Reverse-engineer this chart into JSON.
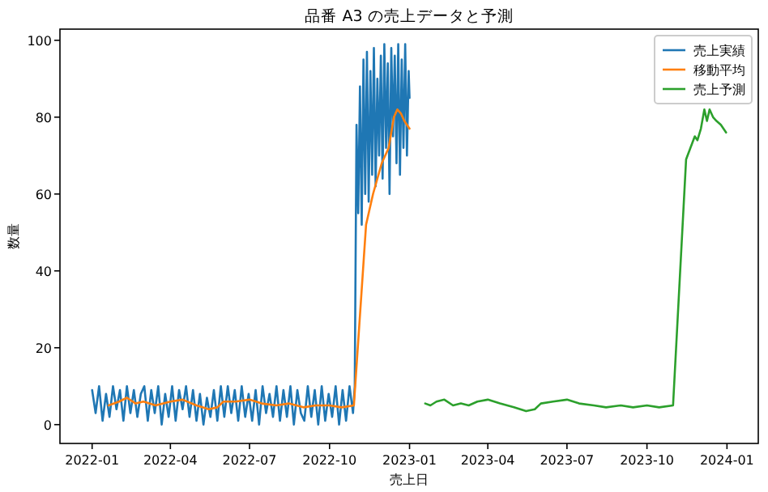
{
  "chart_data": {
    "type": "line",
    "title": "品番 A3 の売上データと予測",
    "xlabel": "売上日",
    "ylabel": "数量",
    "xlim": [
      "2021-11-25",
      "2024-02-06"
    ],
    "xticks": [
      {
        "value": "2022-01-01",
        "label": "2022-01"
      },
      {
        "value": "2022-04-01",
        "label": "2022-04"
      },
      {
        "value": "2022-07-01",
        "label": "2022-07"
      },
      {
        "value": "2022-10-01",
        "label": "2022-10"
      },
      {
        "value": "2023-01-01",
        "label": "2023-01"
      },
      {
        "value": "2023-04-01",
        "label": "2023-04"
      },
      {
        "value": "2023-07-01",
        "label": "2023-07"
      },
      {
        "value": "2023-10-01",
        "label": "2023-10"
      },
      {
        "value": "2024-01-01",
        "label": "2024-01"
      }
    ],
    "ylim": [
      -4.9,
      102.9
    ],
    "yticks": [
      0,
      20,
      40,
      60,
      80,
      100
    ],
    "legend": "top right",
    "series": [
      {
        "name": "売上実績",
        "color": "#1f77b4",
        "x": [
          "2022-01-01",
          "2022-01-05",
          "2022-01-09",
          "2022-01-13",
          "2022-01-17",
          "2022-01-21",
          "2022-01-25",
          "2022-01-29",
          "2022-02-02",
          "2022-02-06",
          "2022-02-10",
          "2022-02-14",
          "2022-02-18",
          "2022-02-22",
          "2022-02-26",
          "2022-03-02",
          "2022-03-06",
          "2022-03-10",
          "2022-03-14",
          "2022-03-18",
          "2022-03-22",
          "2022-03-26",
          "2022-03-30",
          "2022-04-03",
          "2022-04-07",
          "2022-04-11",
          "2022-04-15",
          "2022-04-19",
          "2022-04-23",
          "2022-04-27",
          "2022-05-01",
          "2022-05-05",
          "2022-05-09",
          "2022-05-13",
          "2022-05-17",
          "2022-05-21",
          "2022-05-25",
          "2022-05-29",
          "2022-06-02",
          "2022-06-06",
          "2022-06-10",
          "2022-06-14",
          "2022-06-18",
          "2022-06-22",
          "2022-06-26",
          "2022-06-30",
          "2022-07-04",
          "2022-07-08",
          "2022-07-12",
          "2022-07-16",
          "2022-07-20",
          "2022-07-24",
          "2022-07-28",
          "2022-08-01",
          "2022-08-05",
          "2022-08-09",
          "2022-08-13",
          "2022-08-17",
          "2022-08-21",
          "2022-08-25",
          "2022-08-29",
          "2022-09-02",
          "2022-09-06",
          "2022-09-10",
          "2022-09-14",
          "2022-09-18",
          "2022-09-22",
          "2022-09-26",
          "2022-09-30",
          "2022-10-04",
          "2022-10-08",
          "2022-10-12",
          "2022-10-16",
          "2022-10-20",
          "2022-10-24",
          "2022-10-28",
          "2022-10-30",
          "2022-11-01",
          "2022-11-03",
          "2022-11-05",
          "2022-11-07",
          "2022-11-09",
          "2022-11-11",
          "2022-11-13",
          "2022-11-15",
          "2022-11-17",
          "2022-11-19",
          "2022-11-21",
          "2022-11-23",
          "2022-11-25",
          "2022-11-27",
          "2022-11-29",
          "2022-12-01",
          "2022-12-03",
          "2022-12-05",
          "2022-12-07",
          "2022-12-09",
          "2022-12-11",
          "2022-12-13",
          "2022-12-15",
          "2022-12-17",
          "2022-12-19",
          "2022-12-21",
          "2022-12-23",
          "2022-12-25",
          "2022-12-27",
          "2022-12-29",
          "2022-12-31",
          "2023-01-01"
        ],
        "values": [
          9,
          3,
          10,
          1,
          8,
          2,
          10,
          4,
          9,
          1,
          10,
          3,
          9,
          2,
          8,
          10,
          1,
          9,
          3,
          10,
          0,
          8,
          2,
          10,
          1,
          9,
          4,
          10,
          2,
          9,
          1,
          8,
          0,
          7,
          2,
          9,
          1,
          10,
          2,
          10,
          3,
          9,
          1,
          10,
          2,
          8,
          1,
          9,
          0,
          10,
          3,
          8,
          2,
          10,
          1,
          9,
          2,
          10,
          0,
          9,
          3,
          1,
          10,
          2,
          9,
          0,
          10,
          1,
          8,
          2,
          10,
          0,
          9,
          1,
          10,
          3,
          10,
          78,
          55,
          88,
          52,
          95,
          60,
          97,
          58,
          92,
          65,
          98,
          62,
          90,
          70,
          96,
          64,
          99,
          72,
          94,
          60,
          98,
          75,
          96,
          68,
          99,
          65,
          95,
          72,
          99,
          70,
          92,
          85
        ]
      },
      {
        "name": "移動平均",
        "color": "#ff7f0e",
        "x": [
          "2022-01-20",
          "2022-02-01",
          "2022-02-10",
          "2022-02-20",
          "2022-03-01",
          "2022-03-15",
          "2022-04-01",
          "2022-04-15",
          "2022-05-01",
          "2022-05-15",
          "2022-05-25",
          "2022-06-01",
          "2022-06-15",
          "2022-07-01",
          "2022-07-15",
          "2022-08-01",
          "2022-08-15",
          "2022-09-01",
          "2022-09-15",
          "2022-10-01",
          "2022-10-15",
          "2022-10-29",
          "2022-11-12",
          "2022-11-20",
          "2022-11-30",
          "2022-12-08",
          "2022-12-14",
          "2022-12-18",
          "2022-12-22",
          "2022-12-26",
          "2023-01-01"
        ],
        "values": [
          5,
          6,
          7,
          5.5,
          6,
          5,
          6,
          6.5,
          5,
          4,
          4.5,
          6,
          6,
          6.5,
          5.5,
          5,
          5.5,
          4.5,
          5,
          5,
          4.5,
          5,
          52,
          60,
          68,
          72,
          80,
          82,
          81,
          79,
          77
        ]
      },
      {
        "name": "売上予測",
        "color": "#2ca02c",
        "x": [
          "2023-01-19",
          "2023-01-25",
          "2023-02-01",
          "2023-02-10",
          "2023-02-20",
          "2023-03-01",
          "2023-03-10",
          "2023-03-20",
          "2023-04-01",
          "2023-04-15",
          "2023-05-01",
          "2023-05-15",
          "2023-05-25",
          "2023-06-01",
          "2023-06-15",
          "2023-07-01",
          "2023-07-15",
          "2023-08-01",
          "2023-08-15",
          "2023-09-01",
          "2023-09-15",
          "2023-10-01",
          "2023-10-15",
          "2023-10-31",
          "2023-11-15",
          "2023-11-20",
          "2023-11-25",
          "2023-11-28",
          "2023-12-02",
          "2023-12-06",
          "2023-12-09",
          "2023-12-12",
          "2023-12-16",
          "2023-12-20",
          "2023-12-25",
          "2023-12-31"
        ],
        "values": [
          5.5,
          5,
          6,
          6.5,
          5,
          5.5,
          5,
          6,
          6.5,
          5.5,
          4.5,
          3.5,
          4,
          5.5,
          6,
          6.5,
          5.5,
          5,
          4.5,
          5,
          4.5,
          5,
          4.5,
          5,
          69,
          72,
          75,
          74,
          77,
          82,
          79,
          82,
          80,
          79,
          78,
          76
        ]
      }
    ]
  }
}
